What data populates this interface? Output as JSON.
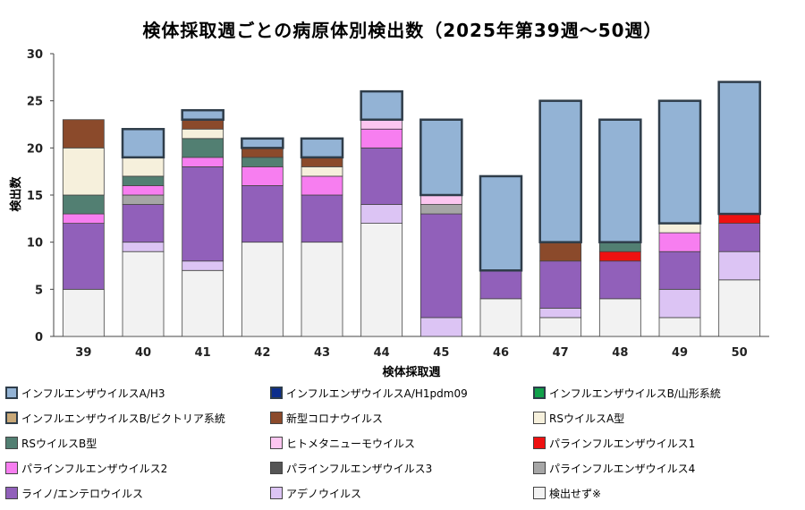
{
  "chart_data": {
    "type": "bar",
    "stacked": true,
    "title": "検体採取週ごとの病原体別検出数（2025年第39週～50週）",
    "xlabel": "検体採取週",
    "ylabel": "検出数",
    "ylim": [
      0,
      30
    ],
    "yticks": [
      0,
      5,
      10,
      15,
      20,
      25,
      30
    ],
    "grid": false,
    "legend_position": "bottom",
    "categories": [
      "39",
      "40",
      "41",
      "42",
      "43",
      "44",
      "45",
      "46",
      "47",
      "48",
      "49",
      "50"
    ],
    "series": [
      {
        "name": "インフルエンザウイルスA/H3",
        "color": "#93b3d5",
        "border": "#2f3d4a",
        "values": [
          0,
          3,
          1,
          1,
          2,
          3,
          8,
          10,
          15,
          13,
          13,
          14
        ]
      },
      {
        "name": "インフルエンザウイルスA/H1pdm09",
        "color": "#0b2d8c",
        "border": "#2f3d4a",
        "values": [
          0,
          0,
          0,
          0,
          0,
          0,
          0,
          0,
          0,
          0,
          0,
          0
        ]
      },
      {
        "name": "インフルエンザウイルスB/山形系統",
        "color": "#10a04a",
        "border": "#2f3d4a",
        "values": [
          0,
          0,
          0,
          0,
          0,
          0,
          0,
          0,
          0,
          0,
          0,
          0
        ]
      },
      {
        "name": "インフルエンザウイルスB/ビクトリア系統",
        "color": "#c8a878",
        "border": "#2f3d4a",
        "values": [
          0,
          0,
          0,
          0,
          0,
          0,
          0,
          0,
          0,
          0,
          0,
          0
        ]
      },
      {
        "name": "新型コロナウイルス",
        "color": "#8b4a2b",
        "border": "#444444",
        "values": [
          3,
          0,
          1,
          1,
          1,
          0,
          0,
          0,
          2,
          0,
          0,
          0
        ]
      },
      {
        "name": "RSウイルスA型",
        "color": "#f6f0dc",
        "border": "#444444",
        "values": [
          5,
          2,
          1,
          0,
          1,
          0,
          0,
          0,
          0,
          0,
          1,
          0
        ]
      },
      {
        "name": "RSウイルスB型",
        "color": "#527f72",
        "border": "#444444",
        "values": [
          2,
          1,
          2,
          1,
          0,
          0,
          0,
          0,
          0,
          1,
          0,
          0
        ]
      },
      {
        "name": "ヒトメタニューモウイルス",
        "color": "#fcc6f0",
        "border": "#444444",
        "values": [
          0,
          0,
          0,
          0,
          0,
          1,
          1,
          0,
          0,
          0,
          0,
          0
        ]
      },
      {
        "name": "パラインフルエンザウイルス1",
        "color": "#ee1111",
        "border": "#444444",
        "values": [
          0,
          0,
          0,
          0,
          0,
          0,
          0,
          0,
          0,
          1,
          0,
          1
        ]
      },
      {
        "name": "パラインフルエンザウイルス2",
        "color": "#f77ef0",
        "border": "#444444",
        "values": [
          1,
          1,
          1,
          2,
          2,
          2,
          0,
          0,
          0,
          0,
          2,
          0
        ]
      },
      {
        "name": "パラインフルエンザウイルス3",
        "color": "#555555",
        "border": "#444444",
        "values": [
          0,
          0,
          0,
          0,
          0,
          0,
          0,
          0,
          0,
          0,
          0,
          0
        ]
      },
      {
        "name": "パラインフルエンザウイルス4",
        "color": "#a6a6a6",
        "border": "#444444",
        "values": [
          0,
          1,
          0,
          0,
          0,
          0,
          1,
          0,
          0,
          0,
          0,
          0
        ]
      },
      {
        "name": "ライノ/エンテロウイルス",
        "color": "#9160ba",
        "border": "#444444",
        "values": [
          7,
          4,
          10,
          6,
          5,
          6,
          11,
          3,
          5,
          4,
          4,
          3
        ]
      },
      {
        "name": "アデノウイルス",
        "color": "#dcc4f4",
        "border": "#444444",
        "values": [
          0,
          1,
          1,
          0,
          0,
          2,
          2,
          0,
          1,
          0,
          3,
          3
        ]
      },
      {
        "name": "検出せず※",
        "color": "#f2f2f2",
        "border": "#444444",
        "values": [
          5,
          9,
          7,
          10,
          10,
          12,
          0,
          4,
          2,
          4,
          2,
          6
        ]
      }
    ]
  }
}
